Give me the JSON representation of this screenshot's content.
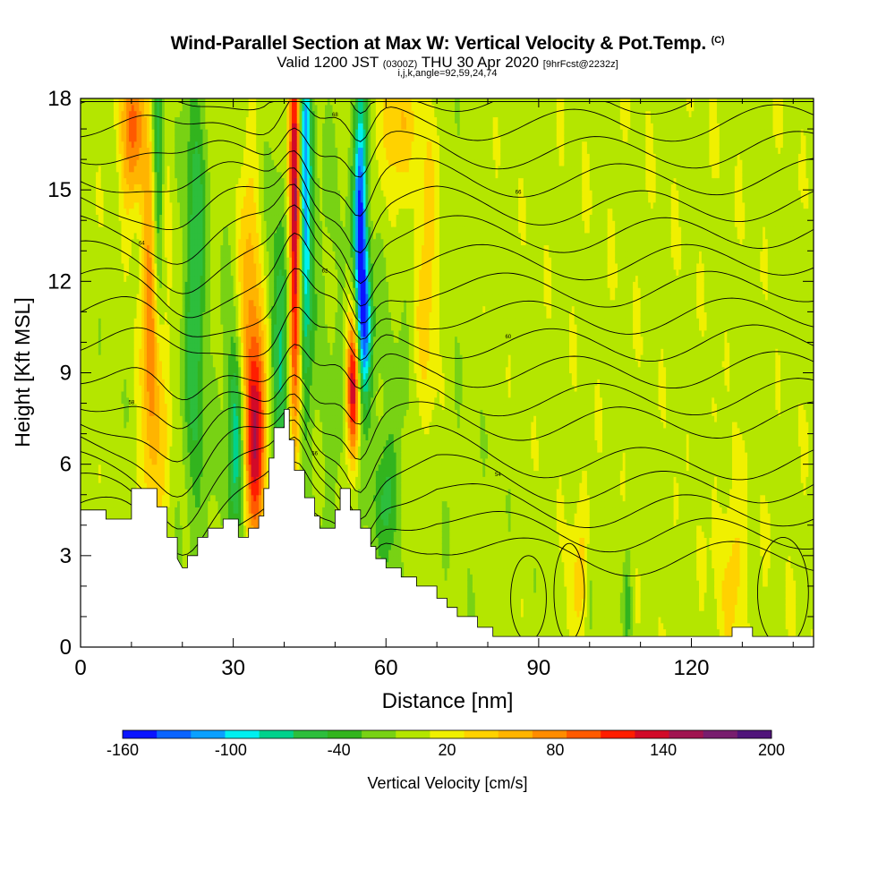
{
  "title": {
    "main": "Wind-Parallel Section at Max W: Vertical Velocity & Pot.Temp.",
    "copyright": "(C)",
    "valid_prefix": "Valid 1200 JST",
    "valid_z": "(0300Z)",
    "valid_date": "THU 30 Apr 2020",
    "forecast": "[9hrFcst@2232z]",
    "indices": "i,j,k,angle=92,59,24,74"
  },
  "chart_data": {
    "type": "heatmap",
    "xlabel": "Distance [nm]",
    "ylabel": "Height [Kft MSL]",
    "xlim": [
      0,
      144
    ],
    "ylim": [
      0,
      18
    ],
    "x_ticks": [
      "0",
      "30",
      "60",
      "90",
      "120"
    ],
    "x_tick_values": [
      0,
      30,
      60,
      90,
      120
    ],
    "y_ticks": [
      "0",
      "3",
      "6",
      "9",
      "12",
      "15",
      "18"
    ],
    "y_tick_values": [
      0,
      3,
      6,
      9,
      12,
      15,
      18
    ],
    "colorbar": {
      "label": "Vertical Velocity [cm/s]",
      "tick_labels": [
        "-160",
        "-100",
        "-40",
        "20",
        "80",
        "140",
        "200"
      ],
      "tick_values": [
        -160,
        -100,
        -40,
        20,
        80,
        140,
        200
      ],
      "colors": [
        "#0a14ff",
        "#0a64ff",
        "#0aa0ff",
        "#00f0f0",
        "#00d28c",
        "#2dbe3c",
        "#32b41e",
        "#78d214",
        "#b4e600",
        "#f0f000",
        "#ffd200",
        "#ffb400",
        "#ff8c00",
        "#ff5a00",
        "#ff1e00",
        "#d20a28",
        "#a01450",
        "#781e6e",
        "#50147a"
      ]
    },
    "terrain": [
      [
        0,
        4.5
      ],
      [
        5,
        4.5
      ],
      [
        5,
        4.2
      ],
      [
        10,
        4.2
      ],
      [
        10,
        5.2
      ],
      [
        15,
        5.2
      ],
      [
        15,
        4.6
      ],
      [
        17,
        4.6
      ],
      [
        17,
        3.6
      ],
      [
        19,
        3.6
      ],
      [
        19,
        2.9
      ],
      [
        20,
        2.6
      ],
      [
        21,
        2.6
      ],
      [
        21,
        3.0
      ],
      [
        23,
        3.0
      ],
      [
        23,
        3.6
      ],
      [
        25,
        3.6
      ],
      [
        25,
        3.9
      ],
      [
        28,
        3.9
      ],
      [
        28,
        4.2
      ],
      [
        31,
        4.2
      ],
      [
        31,
        3.6
      ],
      [
        33,
        3.6
      ],
      [
        33,
        3.9
      ],
      [
        35,
        3.9
      ],
      [
        35,
        4.3
      ],
      [
        36,
        4.3
      ],
      [
        36,
        5.2
      ],
      [
        37,
        5.2
      ],
      [
        37,
        6.2
      ],
      [
        38,
        6.2
      ],
      [
        38,
        7.2
      ],
      [
        40,
        7.2
      ],
      [
        40,
        7.8
      ],
      [
        41,
        7.8
      ],
      [
        41,
        6.8
      ],
      [
        42,
        6.8
      ],
      [
        42,
        5.8
      ],
      [
        44,
        5.8
      ],
      [
        44,
        4.9
      ],
      [
        46,
        4.9
      ],
      [
        46,
        4.3
      ],
      [
        47,
        4.3
      ],
      [
        47,
        3.9
      ],
      [
        50,
        3.9
      ],
      [
        50,
        4.5
      ],
      [
        51,
        4.5
      ],
      [
        51,
        5.2
      ],
      [
        53,
        5.2
      ],
      [
        53,
        4.5
      ],
      [
        55,
        4.5
      ],
      [
        55,
        3.9
      ],
      [
        57,
        3.9
      ],
      [
        57,
        3.3
      ],
      [
        58,
        3.3
      ],
      [
        58,
        2.9
      ],
      [
        60,
        2.9
      ],
      [
        60,
        2.6
      ],
      [
        63,
        2.6
      ],
      [
        63,
        2.3
      ],
      [
        66,
        2.3
      ],
      [
        66,
        2.0
      ],
      [
        70,
        2.0
      ],
      [
        70,
        1.6
      ],
      [
        72,
        1.6
      ],
      [
        72,
        1.3
      ],
      [
        74,
        1.3
      ],
      [
        74,
        1.0
      ],
      [
        78,
        1.0
      ],
      [
        78,
        0.65
      ],
      [
        81,
        0.65
      ],
      [
        81,
        0.35
      ],
      [
        128,
        0.35
      ],
      [
        128,
        0.65
      ],
      [
        132,
        0.65
      ],
      [
        132,
        0.35
      ],
      [
        144,
        0.35
      ]
    ],
    "contour_labels": [
      "50",
      "54",
      "56",
      "58",
      "60",
      "62",
      "64",
      "66",
      "68",
      "70"
    ]
  }
}
